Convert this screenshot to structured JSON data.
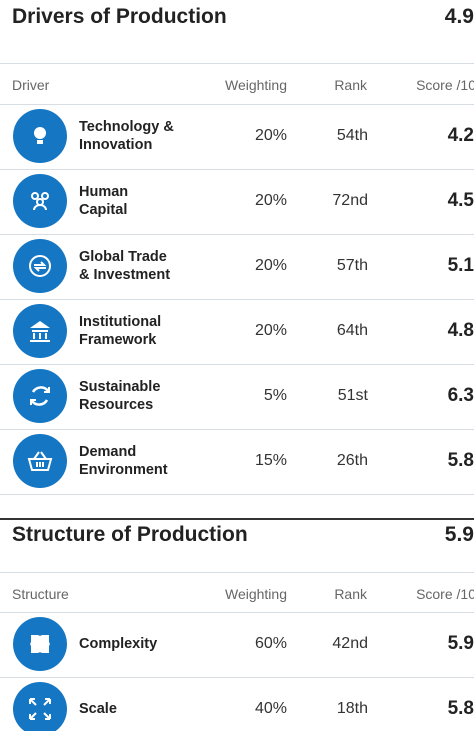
{
  "sections": [
    {
      "title": "Drivers of Production",
      "score": "4.9",
      "header": [
        "Driver",
        "Weighting",
        "Rank",
        "Score /10"
      ],
      "rows": [
        {
          "name": [
            "Technology &",
            "Innovation"
          ],
          "weighting": "20%",
          "rank": "54th",
          "score": "4.2"
        },
        {
          "name": [
            "Human",
            "Capital"
          ],
          "weighting": "20%",
          "rank": "72nd",
          "score": "4.5"
        },
        {
          "name": [
            "Global Trade",
            "& Investment"
          ],
          "weighting": "20%",
          "rank": "57th",
          "score": "5.1"
        },
        {
          "name": [
            "Institutional",
            "Framework"
          ],
          "weighting": "20%",
          "rank": "64th",
          "score": "4.8"
        },
        {
          "name": [
            "Sustainable",
            "Resources"
          ],
          "weighting": "5%",
          "rank": "51st",
          "score": "6.3"
        },
        {
          "name": [
            "Demand",
            "Environment"
          ],
          "weighting": "15%",
          "rank": "26th",
          "score": "5.8"
        }
      ]
    },
    {
      "title": "Structure of Production",
      "score": "5.9",
      "header": [
        "Structure",
        "Weighting",
        "Rank",
        "Score /10"
      ],
      "rows": [
        {
          "name": [
            "Complexity"
          ],
          "weighting": "60%",
          "rank": "42nd",
          "score": "5.9"
        },
        {
          "name": [
            "Scale"
          ],
          "weighting": "40%",
          "rank": "18th",
          "score": "5.8"
        }
      ]
    }
  ]
}
